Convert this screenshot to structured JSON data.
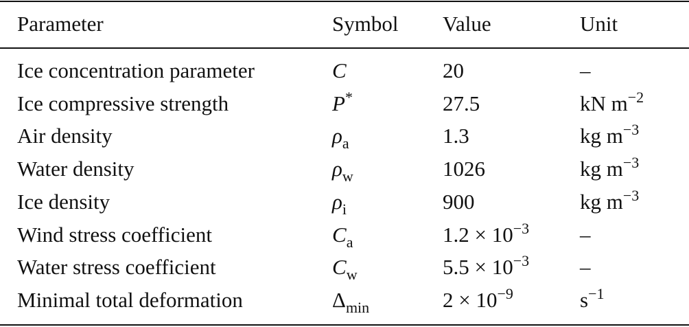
{
  "table": {
    "header": [
      "Parameter",
      "Symbol",
      "Value",
      "Unit"
    ],
    "rows": [
      [
        "Ice concentration parameter",
        {
          "text": "C",
          "italic": true
        },
        "20",
        "–"
      ],
      [
        "Ice compressive strength",
        {
          "text": "P",
          "sup": "*",
          "italic": true
        },
        "27.5",
        {
          "text": "kN m",
          "sup": "−2"
        }
      ],
      [
        "Air density",
        {
          "text": "ρ",
          "sub": "a",
          "italic": true
        },
        "1.3",
        {
          "text": "kg m",
          "sup": "−3"
        }
      ],
      [
        "Water density",
        {
          "text": "ρ",
          "sub": "w",
          "italic": true
        },
        "1026",
        {
          "text": "kg m",
          "sup": "−3"
        }
      ],
      [
        "Ice density",
        {
          "text": "ρ",
          "sub": "i",
          "italic": true
        },
        "900",
        {
          "text": "kg m",
          "sup": "−3"
        }
      ],
      [
        "Wind stress coefficient",
        {
          "text": "C",
          "sub": "a",
          "italic": true
        },
        {
          "text": "1.2 × 10",
          "sup": "−3"
        },
        "–"
      ],
      [
        "Water stress coefficient",
        {
          "text": "C",
          "sub": "w",
          "italic": true
        },
        {
          "text": "5.5 × 10",
          "sup": "−3"
        },
        "–"
      ],
      [
        "Minimal total deformation",
        {
          "text": "Δ",
          "sub": "min"
        },
        {
          "text": "2 × 10",
          "sup": "−9"
        },
        {
          "text": "s",
          "sup": "−1"
        }
      ]
    ]
  }
}
